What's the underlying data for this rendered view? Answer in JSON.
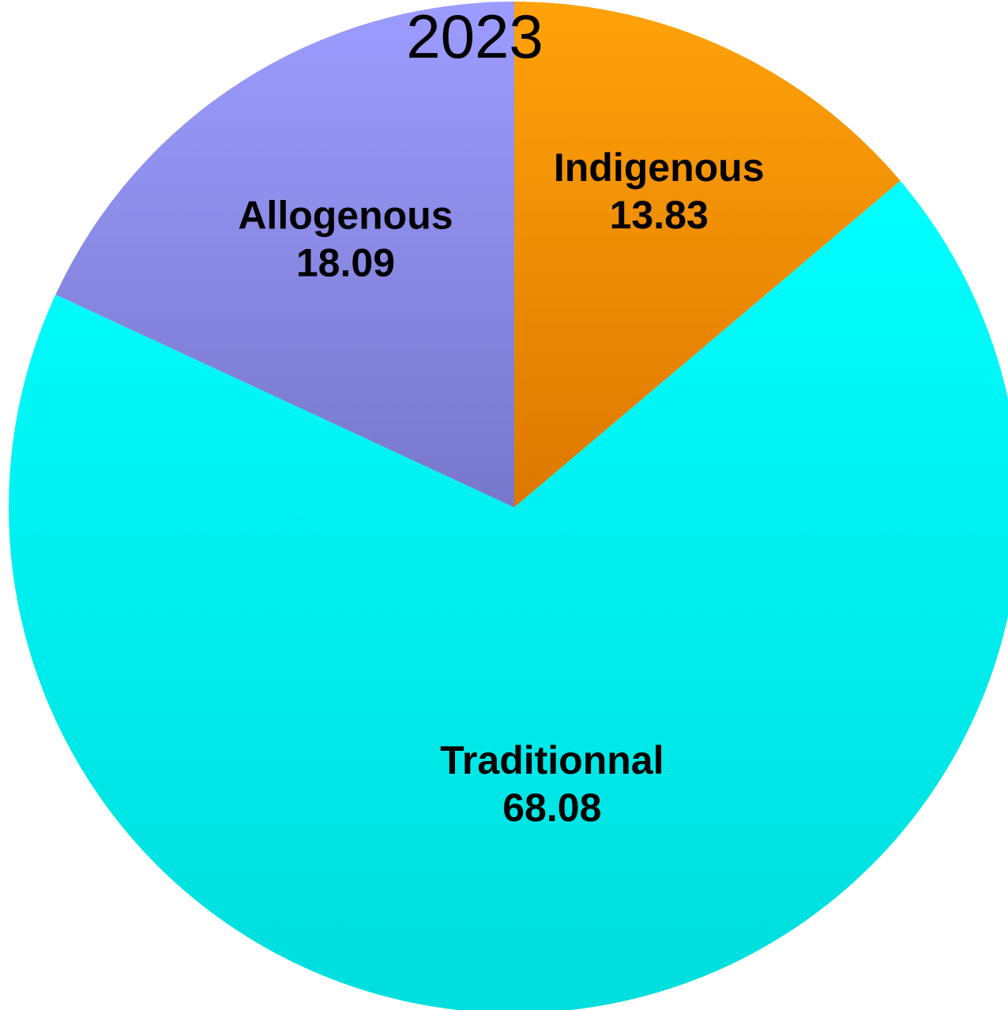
{
  "chart_data": {
    "type": "pie",
    "title": "2023",
    "start_angle_deg": 0,
    "direction": "clockwise",
    "slices": [
      {
        "label": "Indigenous",
        "value": 13.83,
        "value_label": "13.83",
        "color_top": "#FFA20A",
        "color_bottom": "#DD7800"
      },
      {
        "label": "Traditionnal",
        "value": 68.08,
        "value_label": "68.08",
        "color_top": "#00FFFF",
        "color_bottom": "#00DDDD"
      },
      {
        "label": "Allogenous",
        "value": 18.09,
        "value_label": "18.09",
        "color_top": "#9C9CFF",
        "color_bottom": "#7777CC"
      }
    ]
  }
}
